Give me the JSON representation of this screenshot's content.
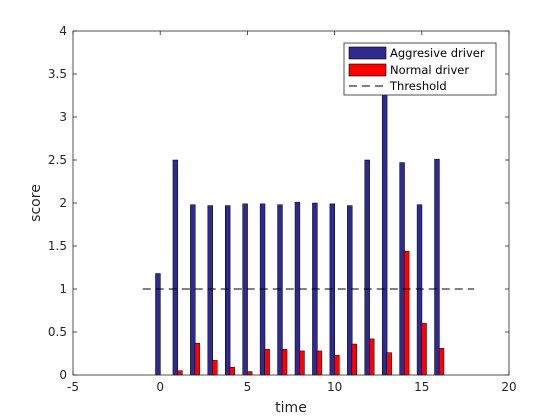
{
  "chart_data": {
    "type": "bar",
    "xlabel": "time",
    "ylabel": "score",
    "xlim": [
      -5,
      20
    ],
    "ylim": [
      0,
      4
    ],
    "xticks": [
      "-5",
      "0",
      "5",
      "10",
      "15",
      "20"
    ],
    "yticks": [
      "0",
      "0.5",
      "1",
      "1.5",
      "2",
      "2.5",
      "3",
      "3.5",
      "4"
    ],
    "x": [
      0,
      1,
      2,
      3,
      4,
      5,
      6,
      7,
      8,
      9,
      10,
      11,
      12,
      13,
      14,
      15,
      16
    ],
    "series": [
      {
        "name": "Aggresive driver",
        "color": "#2e2a8f",
        "values": [
          1.18,
          2.5,
          1.98,
          1.97,
          1.97,
          1.99,
          1.99,
          1.98,
          2.01,
          2.0,
          1.99,
          1.97,
          2.5,
          3.3,
          2.47,
          1.98,
          2.51
        ]
      },
      {
        "name": "Normal driver",
        "color": "#ff0000",
        "values": [
          0.0,
          0.05,
          0.37,
          0.17,
          0.09,
          0.04,
          0.3,
          0.3,
          0.28,
          0.28,
          0.23,
          0.36,
          0.42,
          0.26,
          1.44,
          0.6,
          0.31
        ]
      }
    ],
    "threshold": {
      "name": "Threshold",
      "value": 1,
      "x_range": [
        -1,
        18
      ],
      "style": "dashed",
      "color": "#000000"
    },
    "legend": {
      "position": "top-right"
    },
    "grid": false
  }
}
